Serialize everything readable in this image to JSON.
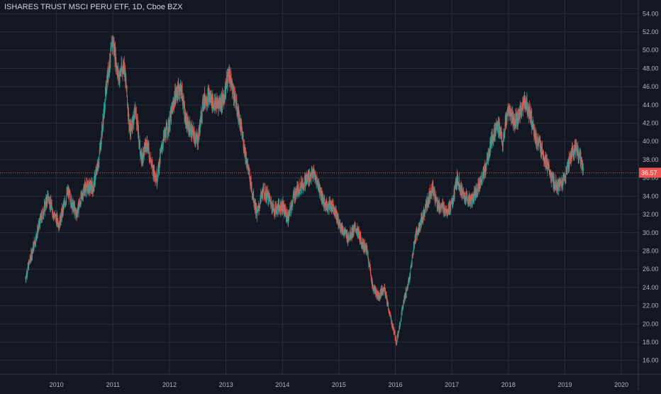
{
  "header": {
    "symbol_title": "ISHARES TRUST MSCI PERU ETF, 1D, Cboe BZX"
  },
  "colors": {
    "background": "#131722",
    "grid": "#2a2e39",
    "up": "#26a69a",
    "down": "#ef5350",
    "last_price_line": "#ef5350",
    "axis_text": "#b2b5be"
  },
  "chart_data": {
    "type": "candlestick",
    "title": "ISHARES TRUST MSCI PERU ETF, 1D, Cboe BZX",
    "xlabel": "",
    "ylabel": "",
    "ylim": [
      14.5,
      55.5
    ],
    "xlim": [
      2009.0,
      2020.3
    ],
    "y_ticks": [
      "16.00",
      "18.00",
      "20.00",
      "22.00",
      "24.00",
      "26.00",
      "28.00",
      "30.00",
      "32.00",
      "34.00",
      "36.00",
      "38.00",
      "40.00",
      "42.00",
      "44.00",
      "46.00",
      "48.00",
      "50.00",
      "52.00",
      "54.00"
    ],
    "x_ticks": [
      "2010",
      "2011",
      "2012",
      "2013",
      "2014",
      "2015",
      "2016",
      "2017",
      "2018",
      "2019",
      "2020"
    ],
    "last_price": 36.57,
    "last_price_label": "36.57",
    "grid": true,
    "series": [
      {
        "type": "close_path",
        "points": [
          [
            2009.45,
            25.0
          ],
          [
            2009.55,
            27.5
          ],
          [
            2009.7,
            31.0
          ],
          [
            2009.85,
            34.0
          ],
          [
            2009.95,
            32.0
          ],
          [
            2010.05,
            31.0
          ],
          [
            2010.2,
            34.5
          ],
          [
            2010.35,
            32.0
          ],
          [
            2010.5,
            35.0
          ],
          [
            2010.65,
            35.0
          ],
          [
            2010.75,
            38.0
          ],
          [
            2010.82,
            42.0
          ],
          [
            2010.9,
            47.0
          ],
          [
            2011.0,
            51.0
          ],
          [
            2011.1,
            47.0
          ],
          [
            2011.2,
            48.5
          ],
          [
            2011.3,
            41.0
          ],
          [
            2011.4,
            43.5
          ],
          [
            2011.5,
            38.0
          ],
          [
            2011.6,
            40.0
          ],
          [
            2011.7,
            37.0
          ],
          [
            2011.78,
            36.0
          ],
          [
            2011.88,
            40.0
          ],
          [
            2012.0,
            42.0
          ],
          [
            2012.1,
            45.0
          ],
          [
            2012.2,
            46.0
          ],
          [
            2012.3,
            42.0
          ],
          [
            2012.4,
            41.0
          ],
          [
            2012.5,
            40.0
          ],
          [
            2012.6,
            44.5
          ],
          [
            2012.7,
            45.0
          ],
          [
            2012.8,
            44.0
          ],
          [
            2012.95,
            44.5
          ],
          [
            2013.05,
            47.5
          ],
          [
            2013.15,
            45.0
          ],
          [
            2013.25,
            42.0
          ],
          [
            2013.35,
            38.5
          ],
          [
            2013.45,
            35.0
          ],
          [
            2013.55,
            32.0
          ],
          [
            2013.65,
            34.5
          ],
          [
            2013.75,
            34.0
          ],
          [
            2013.85,
            32.5
          ],
          [
            2014.0,
            33.0
          ],
          [
            2014.1,
            31.5
          ],
          [
            2014.2,
            34.0
          ],
          [
            2014.3,
            35.0
          ],
          [
            2014.45,
            36.0
          ],
          [
            2014.55,
            36.5
          ],
          [
            2014.65,
            35.0
          ],
          [
            2014.75,
            33.0
          ],
          [
            2014.9,
            33.0
          ],
          [
            2015.0,
            31.0
          ],
          [
            2015.15,
            29.5
          ],
          [
            2015.3,
            30.5
          ],
          [
            2015.4,
            29.0
          ],
          [
            2015.5,
            28.0
          ],
          [
            2015.6,
            24.0
          ],
          [
            2015.7,
            23.0
          ],
          [
            2015.8,
            24.0
          ],
          [
            2015.9,
            21.0
          ],
          [
            2016.02,
            18.0
          ],
          [
            2016.15,
            22.5
          ],
          [
            2016.25,
            25.0
          ],
          [
            2016.35,
            29.5
          ],
          [
            2016.45,
            31.0
          ],
          [
            2016.55,
            33.0
          ],
          [
            2016.65,
            35.0
          ],
          [
            2016.75,
            33.0
          ],
          [
            2016.9,
            32.5
          ],
          [
            2017.0,
            33.0
          ],
          [
            2017.1,
            36.0
          ],
          [
            2017.2,
            34.0
          ],
          [
            2017.35,
            33.5
          ],
          [
            2017.5,
            35.5
          ],
          [
            2017.6,
            37.0
          ],
          [
            2017.7,
            40.0
          ],
          [
            2017.8,
            42.0
          ],
          [
            2017.9,
            40.0
          ],
          [
            2018.0,
            43.5
          ],
          [
            2018.1,
            42.0
          ],
          [
            2018.2,
            43.0
          ],
          [
            2018.3,
            44.5
          ],
          [
            2018.4,
            42.5
          ],
          [
            2018.5,
            40.0
          ],
          [
            2018.6,
            39.0
          ],
          [
            2018.7,
            37.0
          ],
          [
            2018.8,
            35.5
          ],
          [
            2018.9,
            35.0
          ],
          [
            2019.0,
            36.0
          ],
          [
            2019.1,
            38.5
          ],
          [
            2019.2,
            39.5
          ],
          [
            2019.28,
            38.0
          ],
          [
            2019.33,
            36.8
          ]
        ]
      }
    ]
  }
}
